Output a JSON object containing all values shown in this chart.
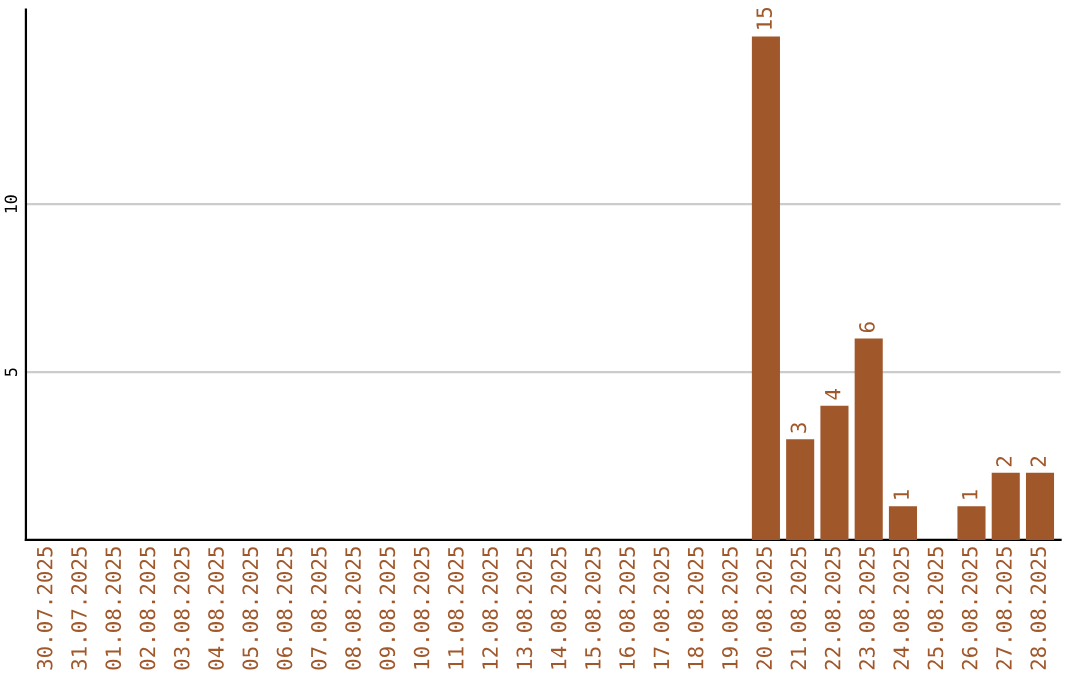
{
  "chart_data": {
    "type": "bar",
    "categories": [
      "30.07.2025",
      "31.07.2025",
      "01.08.2025",
      "02.08.2025",
      "03.08.2025",
      "04.08.2025",
      "05.08.2025",
      "06.08.2025",
      "07.08.2025",
      "08.08.2025",
      "09.08.2025",
      "10.08.2025",
      "11.08.2025",
      "12.08.2025",
      "13.08.2025",
      "14.08.2025",
      "15.08.2025",
      "16.08.2025",
      "17.08.2025",
      "18.08.2025",
      "19.08.2025",
      "20.08.2025",
      "21.08.2025",
      "22.08.2025",
      "23.08.2025",
      "24.08.2025",
      "25.08.2025",
      "26.08.2025",
      "27.08.2025",
      "28.08.2025"
    ],
    "values": [
      0,
      0,
      0,
      0,
      0,
      0,
      0,
      0,
      0,
      0,
      0,
      0,
      0,
      0,
      0,
      0,
      0,
      0,
      0,
      0,
      0,
      15,
      3,
      4,
      6,
      1,
      0,
      1,
      2,
      2
    ],
    "value_labels": [
      null,
      null,
      null,
      null,
      null,
      null,
      null,
      null,
      null,
      null,
      null,
      null,
      null,
      null,
      null,
      null,
      null,
      null,
      null,
      null,
      null,
      "15",
      "3",
      "4",
      "6",
      "1",
      null,
      "1",
      "2",
      "2"
    ],
    "color": "#a0582b",
    "ylim": [
      0,
      15.8
    ],
    "yticks": [
      5,
      10
    ],
    "grid": "y"
  }
}
